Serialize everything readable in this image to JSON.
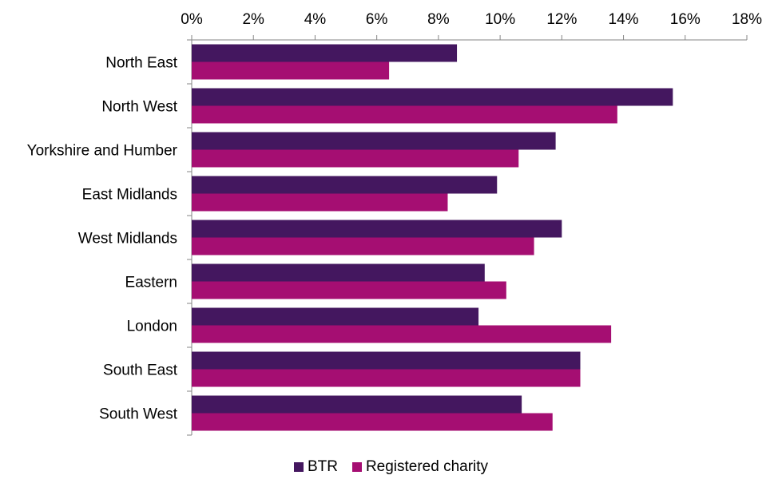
{
  "chart_data": {
    "type": "bar",
    "orientation": "horizontal",
    "categories": [
      "North East",
      "North West",
      "Yorkshire and Humber",
      "East Midlands",
      "West Midlands",
      "Eastern",
      "London",
      "South East",
      "South West"
    ],
    "series": [
      {
        "name": "BTR",
        "color": "#44175f",
        "values": [
          8.6,
          15.6,
          11.8,
          9.9,
          12.0,
          9.5,
          9.3,
          12.6,
          10.7
        ]
      },
      {
        "name": "Registered charity",
        "color": "#a50e72",
        "values": [
          6.4,
          13.8,
          10.6,
          8.3,
          11.1,
          10.2,
          13.6,
          12.6,
          11.7
        ]
      }
    ],
    "xlim": [
      0,
      18
    ],
    "xticks": [
      "0%",
      "2%",
      "4%",
      "6%",
      "8%",
      "10%",
      "12%",
      "14%",
      "16%",
      "18%"
    ],
    "legend_position": "bottom",
    "grid": false
  }
}
